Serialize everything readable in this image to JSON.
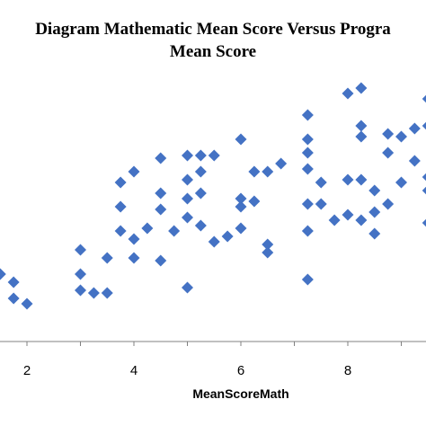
{
  "chart_data": {
    "type": "scatter",
    "title_line1": "Diagram Mathematic Mean Score Versus Progra",
    "title_line2": "Mean Score",
    "xlabel": "MeanScoreMath",
    "xlim": [
      1.5,
      9.7
    ],
    "ylim": [
      0,
      10
    ],
    "x_ticks": [
      "2",
      "4",
      "6",
      "8"
    ],
    "grid": false,
    "legend": "none",
    "marker": "diamond",
    "marker_color": "#4472C4",
    "axis_color": "#808080",
    "x": [
      1.5,
      1.75,
      1.75,
      2.0,
      3.0,
      3.0,
      3.0,
      3.25,
      3.5,
      3.5,
      3.75,
      3.75,
      3.75,
      4.0,
      4.0,
      4.0,
      4.25,
      4.5,
      4.5,
      4.5,
      4.5,
      4.75,
      5.0,
      5.0,
      5.0,
      5.0,
      5.0,
      5.25,
      5.25,
      5.25,
      5.25,
      5.5,
      5.5,
      5.75,
      6.0,
      6.0,
      6.0,
      6.0,
      6.25,
      6.25,
      6.5,
      6.5,
      6.5,
      6.75,
      7.25,
      7.25,
      7.25,
      7.25,
      7.25,
      7.25,
      7.25,
      7.5,
      7.5,
      7.75,
      8.0,
      8.0,
      8.0,
      8.25,
      8.25,
      8.25,
      8.25,
      8.25,
      8.5,
      8.5,
      8.5,
      8.75,
      8.75,
      8.75,
      9.0,
      9.0,
      9.25,
      9.25,
      9.5,
      9.5,
      9.5,
      9.5,
      9.5
    ],
    "y": [
      2.5,
      2.2,
      1.6,
      1.4,
      3.4,
      2.5,
      1.9,
      1.8,
      3.1,
      1.8,
      4.1,
      5.0,
      5.9,
      3.1,
      3.8,
      6.3,
      4.2,
      6.8,
      5.5,
      4.9,
      3.0,
      4.1,
      6.9,
      6.0,
      5.3,
      4.6,
      2.0,
      6.9,
      6.3,
      5.5,
      4.3,
      6.9,
      3.7,
      3.9,
      7.5,
      5.0,
      4.2,
      5.3,
      6.3,
      5.2,
      3.6,
      3.3,
      6.3,
      6.6,
      8.4,
      7.5,
      7.0,
      6.4,
      5.1,
      4.1,
      2.3,
      5.9,
      5.1,
      4.5,
      9.2,
      6.0,
      4.7,
      9.4,
      8.0,
      7.6,
      6.0,
      4.5,
      5.6,
      4.8,
      4.0,
      7.7,
      7.0,
      5.1,
      7.6,
      5.9,
      6.7,
      7.9,
      9.0,
      8.0,
      6.1,
      5.6,
      4.4
    ]
  }
}
